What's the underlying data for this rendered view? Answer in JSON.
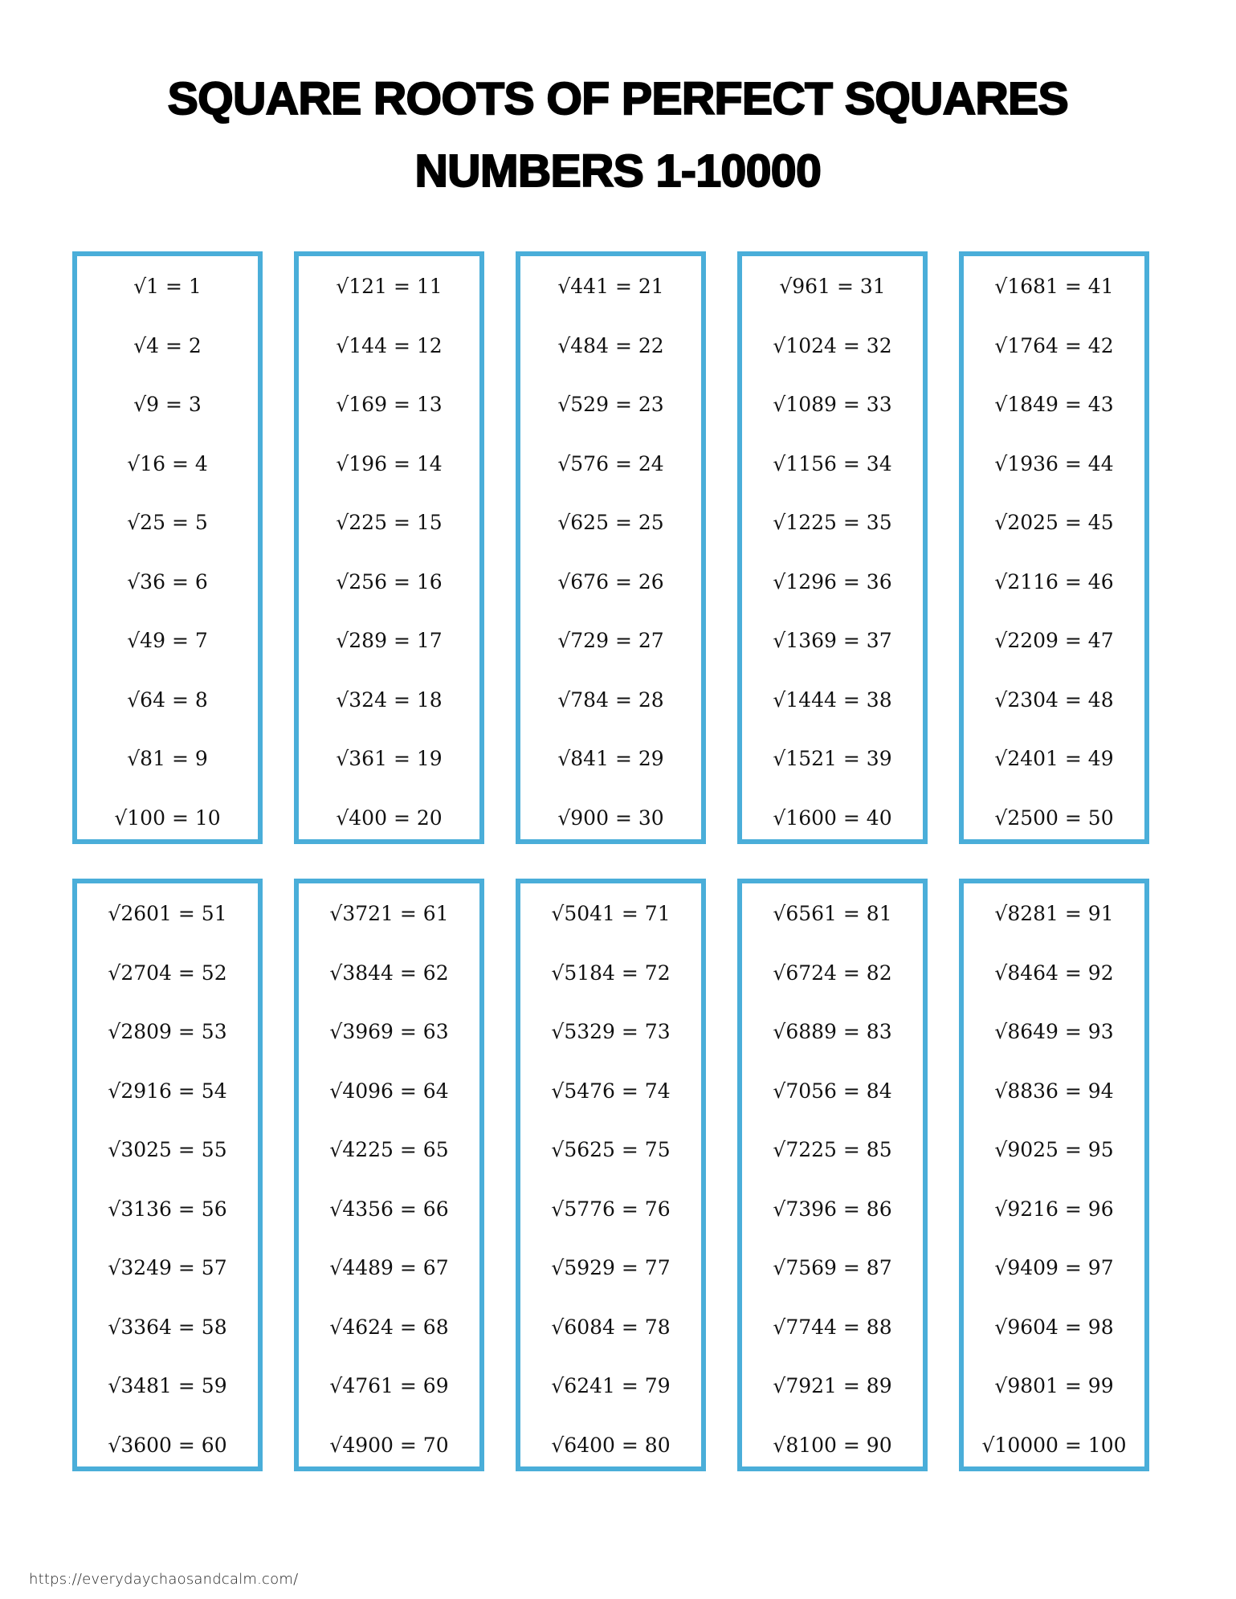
{
  "title": {
    "line1": "SQUARE ROOTS OF PERFECT SQUARES",
    "line2": "NUMBERS 1-10000"
  },
  "border_color": "#4aaed9",
  "boxes": [
    [
      "√1 = 1",
      "√4 = 2",
      "√9 = 3",
      "√16 = 4",
      "√25 = 5",
      "√36 = 6",
      "√49 = 7",
      "√64 = 8",
      "√81 = 9",
      "√100 = 10"
    ],
    [
      "√121 = 11",
      "√144 = 12",
      "√169 = 13",
      "√196 = 14",
      "√225 = 15",
      "√256 = 16",
      "√289 = 17",
      "√324 = 18",
      "√361 = 19",
      "√400 = 20"
    ],
    [
      "√441 = 21",
      "√484 = 22",
      "√529 = 23",
      "√576 = 24",
      "√625 = 25",
      "√676 = 26",
      "√729 = 27",
      "√784 = 28",
      "√841 = 29",
      "√900 = 30"
    ],
    [
      "√961 = 31",
      "√1024 = 32",
      "√1089 = 33",
      "√1156 = 34",
      "√1225 = 35",
      "√1296 = 36",
      "√1369 = 37",
      "√1444 = 38",
      "√1521 = 39",
      "√1600 = 40"
    ],
    [
      "√1681 = 41",
      "√1764 = 42",
      "√1849 = 43",
      "√1936 = 44",
      "√2025 = 45",
      "√2116 = 46",
      "√2209 = 47",
      "√2304 = 48",
      "√2401 = 49",
      "√2500 = 50"
    ],
    [
      "√2601 = 51",
      "√2704 = 52",
      "√2809 = 53",
      "√2916 = 54",
      "√3025 = 55",
      "√3136 = 56",
      "√3249 = 57",
      "√3364 = 58",
      "√3481 = 59",
      "√3600 = 60"
    ],
    [
      "√3721 = 61",
      "√3844 = 62",
      "√3969 = 63",
      "√4096 = 64",
      "√4225 = 65",
      "√4356 = 66",
      "√4489 = 67",
      "√4624 = 68",
      "√4761 = 69",
      "√4900 = 70"
    ],
    [
      "√5041 = 71",
      "√5184 = 72",
      "√5329 = 73",
      "√5476 = 74",
      "√5625 = 75",
      "√5776 = 76",
      "√5929 = 77",
      "√6084 = 78",
      "√6241 = 79",
      "√6400 = 80"
    ],
    [
      "√6561 = 81",
      "√6724 = 82",
      "√6889 = 83",
      "√7056 = 84",
      "√7225 = 85",
      "√7396 = 86",
      "√7569 = 87",
      "√7744 = 88",
      "√7921 = 89",
      "√8100 = 90"
    ],
    [
      "√8281 = 91",
      "√8464 = 92",
      "√8649 = 93",
      "√8836 = 94",
      "√9025 = 95",
      "√9216 = 96",
      "√9409 = 97",
      "√9604 = 98",
      "√9801 = 99",
      "√10000 = 100"
    ]
  ],
  "footer": "https://everydaychaosandcalm.com/"
}
